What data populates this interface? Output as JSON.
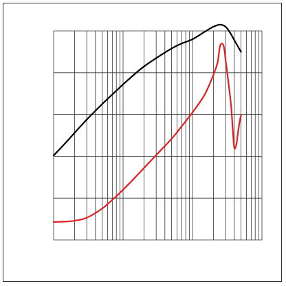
{
  "chart_data": {
    "type": "line",
    "x_scale": "log",
    "y_scale": "linear",
    "x_decades": 3,
    "y_divisions": 5,
    "xlim": [
      1,
      1000
    ],
    "ylim": [
      0,
      5
    ],
    "grid": true,
    "title": "",
    "xlabel": "",
    "ylabel": "",
    "series": [
      {
        "color": "#000000",
        "x": [
          1,
          1.5,
          2,
          3,
          5,
          7,
          10,
          15,
          20,
          30,
          50,
          70,
          100,
          150,
          200,
          250,
          300,
          350,
          400,
          450,
          500
        ],
        "y": [
          2.02,
          2.33,
          2.56,
          2.88,
          3.25,
          3.48,
          3.72,
          3.98,
          4.15,
          4.35,
          4.58,
          4.7,
          4.8,
          4.98,
          5.1,
          5.15,
          5.1,
          4.95,
          4.78,
          4.63,
          4.5
        ]
      },
      {
        "color": "#e02020",
        "x": [
          1,
          1.5,
          2,
          3,
          5,
          7,
          10,
          15,
          20,
          30,
          50,
          70,
          100,
          150,
          200,
          230,
          250,
          280,
          300,
          330,
          360,
          380,
          400,
          430,
          450,
          480,
          500
        ],
        "y": [
          0.43,
          0.44,
          0.46,
          0.53,
          0.75,
          0.96,
          1.2,
          1.5,
          1.72,
          2.03,
          2.42,
          2.72,
          3.05,
          3.48,
          3.95,
          4.25,
          4.65,
          4.65,
          4.3,
          3.75,
          3.2,
          2.65,
          2.2,
          2.3,
          2.55,
          2.85,
          2.98
        ]
      }
    ]
  }
}
